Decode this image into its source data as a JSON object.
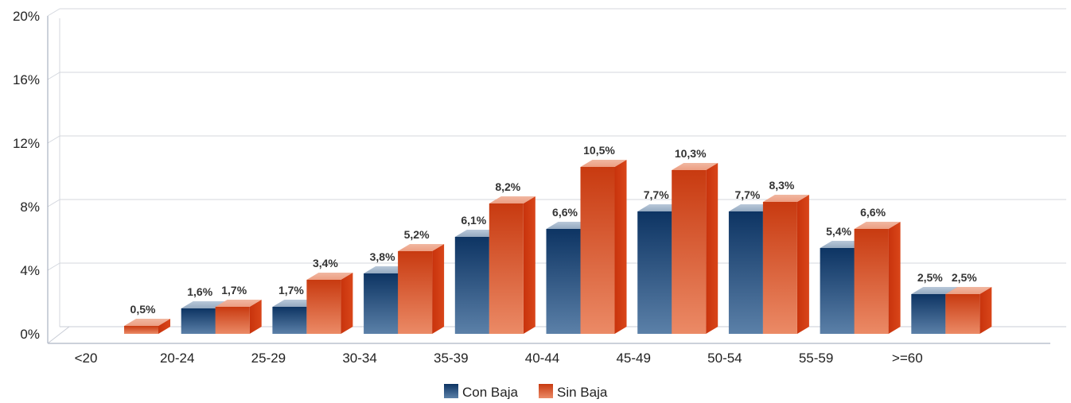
{
  "chart_data": {
    "type": "bar",
    "title": "",
    "xlabel": "",
    "ylabel": "",
    "categories": [
      "<20",
      "20-24",
      "25-29",
      "30-34",
      "35-39",
      "40-44",
      "45-49",
      "50-54",
      "55-59",
      ">=60"
    ],
    "series": [
      {
        "name": "Con Baja",
        "values": [
          0,
          1.6,
          1.7,
          3.8,
          6.1,
          6.6,
          7.7,
          7.7,
          5.4,
          2.5
        ],
        "labels": [
          "",
          "1,6%",
          "1,7%",
          "3,8%",
          "6,1%",
          "6,6%",
          "7,7%",
          "7,7%",
          "5,4%",
          "2,5%"
        ]
      },
      {
        "name": "Sin Baja",
        "values": [
          0.5,
          1.7,
          3.4,
          5.2,
          8.2,
          10.5,
          10.3,
          8.3,
          6.6,
          2.5
        ],
        "labels": [
          "0,5%",
          "1,7%",
          "3,4%",
          "5,2%",
          "8,2%",
          "10,5%",
          "10,3%",
          "8,3%",
          "6,6%",
          "2,5%"
        ]
      }
    ],
    "yticks": [
      0,
      4,
      8,
      12,
      16,
      20
    ],
    "ytick_labels": [
      "0%",
      "4%",
      "8%",
      "12%",
      "16%",
      "20%"
    ],
    "ylim": [
      0,
      20
    ],
    "grid": true,
    "legend": "bottom-center",
    "colors": {
      "con_baja_top": "#0d3463",
      "con_baja_bottom": "#5b80a8",
      "sin_baja_top": "#c83a10",
      "sin_baja_bottom": "#eb8a66"
    }
  }
}
